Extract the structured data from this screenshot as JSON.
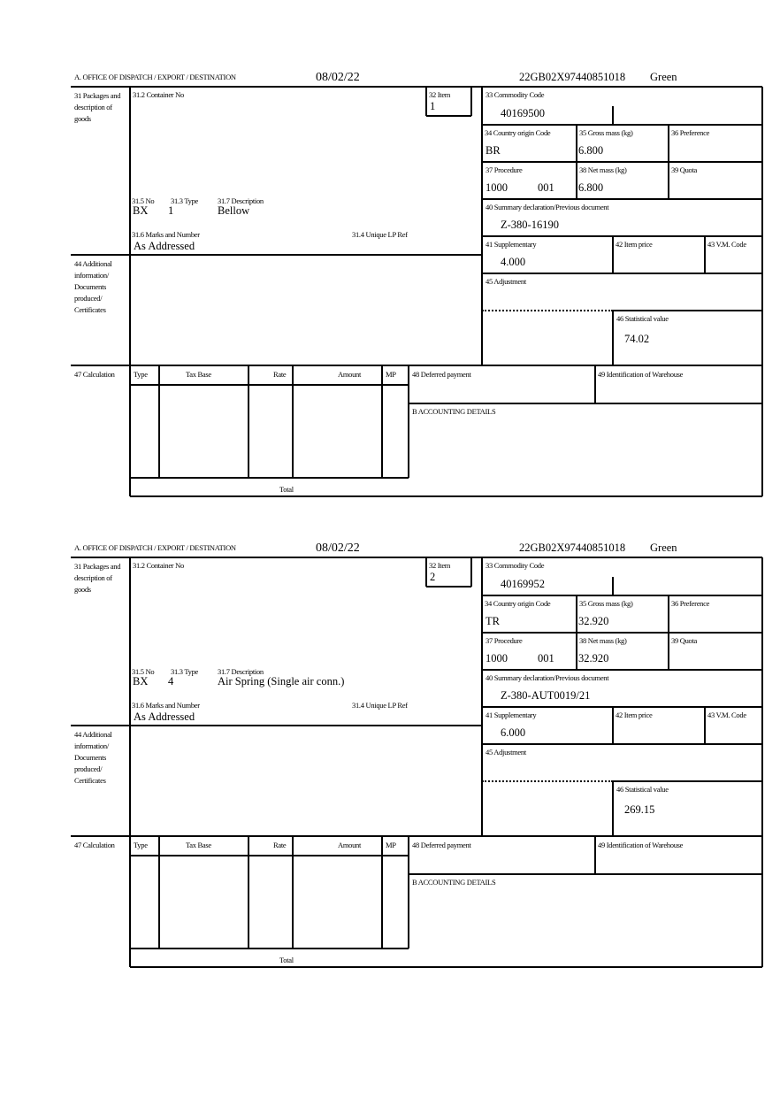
{
  "header": {
    "office_label": "A. OFFICE OF DISPATCH / EXPORT / DESTINATION",
    "date": "08/02/22",
    "reference": "22GB02X97440851018",
    "route": "Green"
  },
  "labels": {
    "packages": "31 Packages and description of goods",
    "container_no": "31.2 Container No",
    "item": "32 Item",
    "no": "31.5 No",
    "type": "31.3 Type",
    "description": "31.7 Description",
    "marks": "31.6 Marks and Number",
    "unique_lp": "31.4 Unique LP Ref",
    "commodity": "33 Commodity Code",
    "country": "34 Country origin Code",
    "gross": "35 Gross mass (kg)",
    "preference": "36 Preference",
    "procedure": "37 Procedure",
    "net": "38 Net mass (kg)",
    "quota": "39 Quota",
    "summary": "40 Summary declaration/Previous document",
    "supplementary": "41 Supplementary",
    "item_price": "42 Item price",
    "vm_code": "43 V.M. Code",
    "additional": "44 Additional information/ Documents produced/ Certificates",
    "adjustment": "45 Adjustment",
    "statistical": "46 Statistical value",
    "calculation": "47 Calculation",
    "col_type": "Type",
    "col_tax_base": "Tax Base",
    "col_rate": "Rate",
    "col_amount": "Amount",
    "col_mp": "MP",
    "deferred": "48 Deferred payment",
    "warehouse": "49 Identification of Warehouse",
    "accounting": "B ACCOUNTING DETAILS",
    "total": "Total"
  },
  "items": [
    {
      "item_no": "1",
      "pkg_kind": "BX",
      "pkg_count": "1",
      "description": "Bellow",
      "marks": "As Addressed",
      "commodity": "40169500",
      "country": "BR",
      "gross": "6.800",
      "procedure": "1000",
      "procedure_extra": "001",
      "net": "6.800",
      "summary": "Z-380-16190",
      "supplementary": "4.000",
      "statistical": "74.02"
    },
    {
      "item_no": "2",
      "pkg_kind": "BX",
      "pkg_count": "4",
      "description": "Air Spring (Single air conn.)",
      "marks": "As Addressed",
      "commodity": "40169952",
      "country": "TR",
      "gross": "32.920",
      "procedure": "1000",
      "procedure_extra": "001",
      "net": "32.920",
      "summary": "Z-380-AUT0019/21",
      "supplementary": "6.000",
      "statistical": "269.15"
    }
  ]
}
